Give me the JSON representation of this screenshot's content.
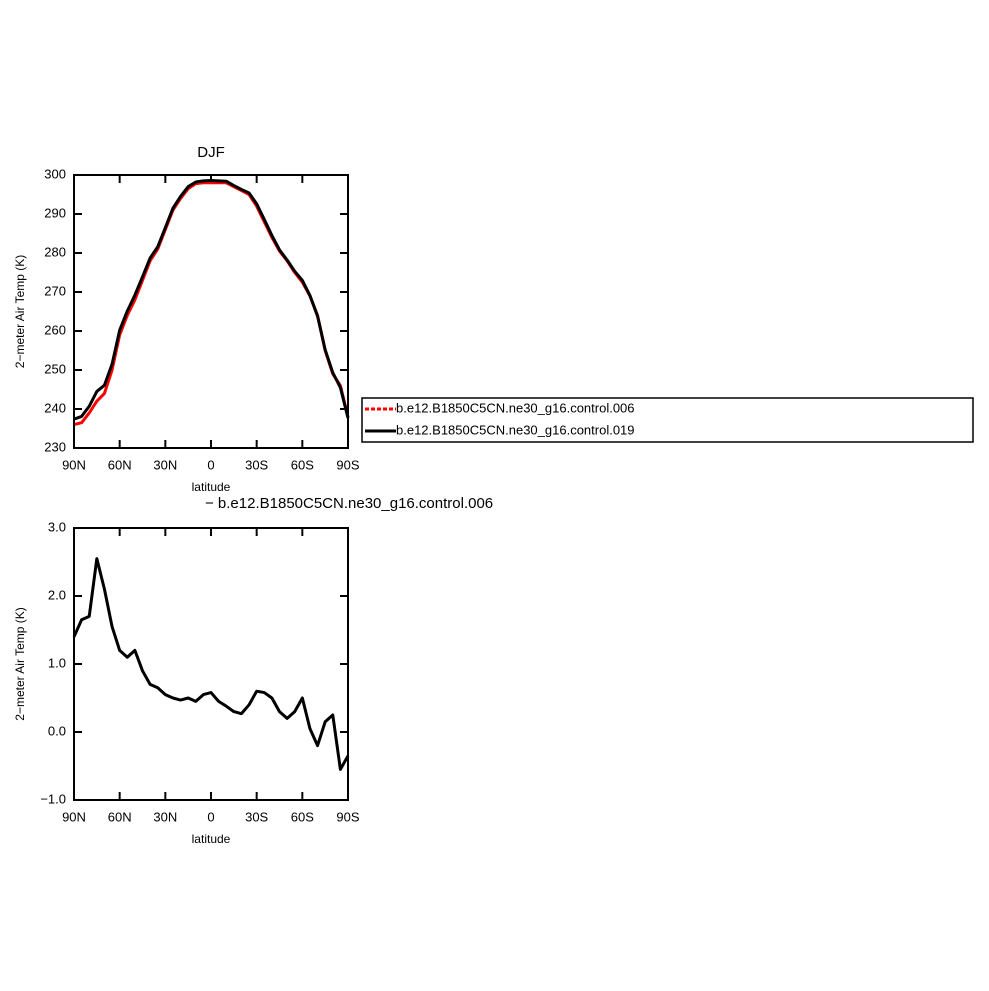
{
  "chart_data": [
    {
      "type": "line",
      "title": "DJF",
      "xlabel": "latitude",
      "ylabel": "2−meter Air Temp (K)",
      "x": [
        90,
        85,
        80,
        75,
        70,
        65,
        60,
        55,
        50,
        45,
        40,
        35,
        30,
        25,
        20,
        15,
        10,
        5,
        0,
        -5,
        -10,
        -15,
        -20,
        -25,
        -30,
        -35,
        -40,
        -45,
        -50,
        -55,
        -60,
        -65,
        -70,
        -75,
        -80,
        -85,
        -90
      ],
      "series": [
        {
          "name": "b.e12.B1850C5CN.ne30_g16.control.006",
          "color": "#ff0000",
          "values": [
            236,
            236.5,
            239,
            242,
            244,
            250,
            259,
            264,
            268,
            273,
            278,
            281,
            286,
            291,
            294,
            296.5,
            297.8,
            298,
            298,
            298,
            298,
            297,
            296,
            295,
            292,
            288,
            284,
            280.5,
            278,
            275,
            272.5,
            269,
            264,
            255,
            249,
            246,
            238
          ]
        },
        {
          "name": "b.e12.B1850C5CN.ne30_g16.control.019",
          "color": "#000000",
          "values": [
            237.4,
            238.1,
            240.7,
            244.5,
            246.1,
            251.5,
            260.2,
            265.1,
            269.2,
            273.9,
            278.7,
            281.6,
            286.5,
            291.5,
            294.5,
            297,
            298.2,
            298.5,
            298.6,
            298.5,
            298.4,
            297.3,
            296.3,
            295.4,
            292.6,
            288.6,
            284.5,
            280.8,
            278.2,
            275.3,
            273,
            269.1,
            263.8,
            255.2,
            249.3,
            245.5,
            237.7
          ]
        }
      ],
      "xlim": [
        90,
        -90
      ],
      "xticks": [
        {
          "value": 90,
          "label": "90N"
        },
        {
          "value": 60,
          "label": "60N"
        },
        {
          "value": 30,
          "label": "30N"
        },
        0,
        {
          "value": -30,
          "label": "30S"
        },
        {
          "value": -60,
          "label": "60S"
        },
        {
          "value": -90,
          "label": "90S"
        }
      ],
      "ylim": [
        230,
        300
      ],
      "yticks": [
        230,
        240,
        250,
        260,
        270,
        280,
        290,
        300
      ],
      "legend": "right"
    },
    {
      "type": "line",
      "subtitle": "− b.e12.B1850C5CN.ne30_g16.control.006",
      "xlabel": "latitude",
      "ylabel": "2−meter Air Temp (K)",
      "x": [
        90,
        85,
        80,
        75,
        70,
        65,
        60,
        55,
        50,
        45,
        40,
        35,
        30,
        25,
        20,
        15,
        10,
        5,
        0,
        -5,
        -10,
        -15,
        -20,
        -25,
        -30,
        -35,
        -40,
        -45,
        -50,
        -55,
        -60,
        -65,
        -70,
        -75,
        -80,
        -85,
        -90
      ],
      "series": [
        {
          "color": "#000000",
          "values": [
            1.4,
            1.65,
            1.7,
            2.55,
            2.1,
            1.55,
            1.2,
            1.1,
            1.2,
            0.9,
            0.7,
            0.65,
            0.55,
            0.5,
            0.47,
            0.5,
            0.45,
            0.55,
            0.58,
            0.45,
            0.38,
            0.3,
            0.27,
            0.4,
            0.6,
            0.58,
            0.5,
            0.3,
            0.2,
            0.3,
            0.5,
            0.05,
            -0.2,
            0.15,
            0.25,
            -0.55,
            -0.35
          ]
        }
      ],
      "xlim": [
        90,
        -90
      ],
      "xticks": [
        {
          "value": 90,
          "label": "90N"
        },
        {
          "value": 60,
          "label": "60N"
        },
        {
          "value": 30,
          "label": "30N"
        },
        0,
        {
          "value": -30,
          "label": "30S"
        },
        {
          "value": -60,
          "label": "60S"
        },
        {
          "value": -90,
          "label": "90S"
        }
      ],
      "ylim": [
        -1,
        3
      ],
      "yticks": [
        {
          "value": -1,
          "label": "−1.0"
        },
        {
          "value": 0,
          "label": "0.0"
        },
        {
          "value": 1,
          "label": "1.0"
        },
        {
          "value": 2,
          "label": "2.0"
        },
        {
          "value": 3,
          "label": "3.0"
        }
      ]
    }
  ]
}
